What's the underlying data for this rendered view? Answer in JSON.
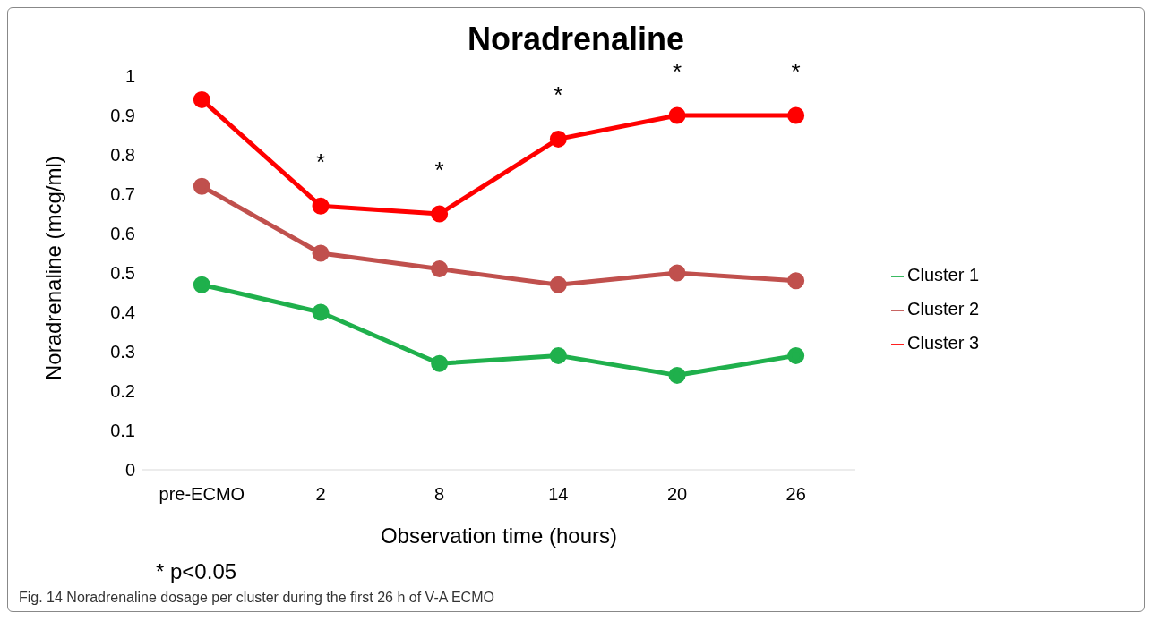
{
  "chart_data": {
    "type": "line",
    "title": "Noradrenaline",
    "xlabel": "Observation time (hours)",
    "ylabel": "Noradrenaline (mcg/ml)",
    "categories": [
      "pre-ECMO",
      "2",
      "8",
      "14",
      "20",
      "26"
    ],
    "series": [
      {
        "name": "Cluster 1",
        "color": "#1fb04c",
        "values": [
          0.47,
          0.4,
          0.27,
          0.29,
          0.24,
          0.29
        ]
      },
      {
        "name": "Cluster 2",
        "color": "#c0504d",
        "values": [
          0.72,
          0.55,
          0.51,
          0.47,
          0.5,
          0.48
        ]
      },
      {
        "name": "Cluster 3",
        "color": "#ff0000",
        "values": [
          0.94,
          0.67,
          0.65,
          0.84,
          0.9,
          0.9
        ]
      }
    ],
    "ylim": [
      0,
      1
    ],
    "yticks": [
      0,
      0.1,
      0.2,
      0.3,
      0.4,
      0.5,
      0.6,
      0.7,
      0.8,
      0.9,
      1
    ],
    "grid": false,
    "legend": "right",
    "marker": "circle",
    "line_style": "solid",
    "annotations": [
      {
        "text": "*",
        "x": "2",
        "y": 0.67
      },
      {
        "text": "*",
        "x": "8",
        "y": 0.65
      },
      {
        "text": "*",
        "x": "14",
        "y": 0.84
      },
      {
        "text": "*",
        "x": "20",
        "y": 0.9
      },
      {
        "text": "*",
        "x": "26",
        "y": 0.9
      },
      "* p<0.05",
      "Fig. 14 Noradrenaline dosage per cluster during the first 26 h of V-A ECMO"
    ]
  }
}
